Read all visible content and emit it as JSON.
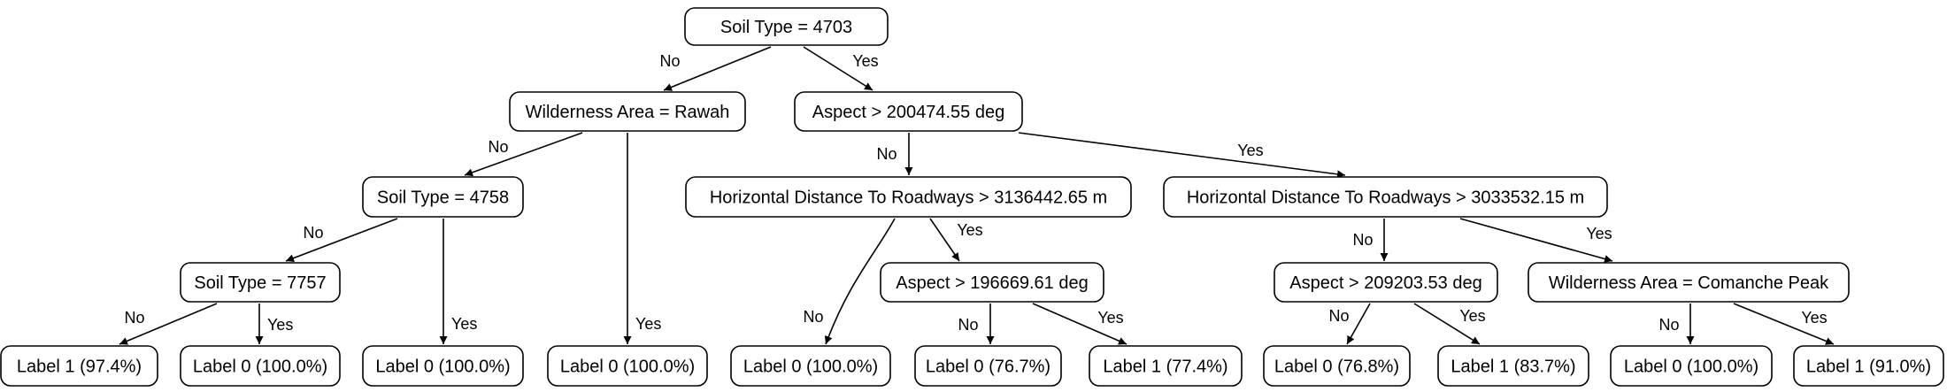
{
  "diagram": {
    "nodes": [
      {
        "id": "n0",
        "text": "Soil Type = 4703"
      },
      {
        "id": "n1",
        "text": "Wilderness Area = Rawah"
      },
      {
        "id": "n2",
        "text": "Aspect > 200474.55 deg"
      },
      {
        "id": "n3",
        "text": "Soil Type = 4758"
      },
      {
        "id": "n4",
        "text": "Horizontal Distance To Roadways > 3136442.65 m"
      },
      {
        "id": "n5",
        "text": "Horizontal Distance To Roadways > 3033532.15 m"
      },
      {
        "id": "n6",
        "text": "Soil Type = 7757"
      },
      {
        "id": "n7",
        "text": "Aspect > 196669.61 deg"
      },
      {
        "id": "n8",
        "text": "Aspect > 209203.53 deg"
      },
      {
        "id": "n9",
        "text": "Wilderness Area = Comanche Peak"
      },
      {
        "id": "l0",
        "text": "Label 1 (97.4%)"
      },
      {
        "id": "l1",
        "text": "Label 0 (100.0%)"
      },
      {
        "id": "l2",
        "text": "Label 0 (100.0%)"
      },
      {
        "id": "l3",
        "text": "Label 0 (100.0%)"
      },
      {
        "id": "l4",
        "text": "Label 0 (100.0%)"
      },
      {
        "id": "l5",
        "text": "Label 0 (76.7%)"
      },
      {
        "id": "l6",
        "text": "Label 1 (77.4%)"
      },
      {
        "id": "l7",
        "text": "Label 0 (76.8%)"
      },
      {
        "id": "l8",
        "text": "Label 1 (83.7%)"
      },
      {
        "id": "l9",
        "text": "Label 0 (100.0%)"
      },
      {
        "id": "l10",
        "text": "Label 1 (91.0%)"
      }
    ],
    "edges": [
      {
        "from": "n0",
        "to": "n1",
        "label": "No"
      },
      {
        "from": "n0",
        "to": "n2",
        "label": "Yes"
      },
      {
        "from": "n1",
        "to": "n3",
        "label": "No"
      },
      {
        "from": "n1",
        "to": "l3",
        "label": "Yes"
      },
      {
        "from": "n3",
        "to": "n6",
        "label": "No"
      },
      {
        "from": "n3",
        "to": "l2",
        "label": "Yes"
      },
      {
        "from": "n6",
        "to": "l0",
        "label": "No"
      },
      {
        "from": "n6",
        "to": "l1",
        "label": "Yes"
      },
      {
        "from": "n2",
        "to": "n4",
        "label": "No"
      },
      {
        "from": "n2",
        "to": "n5",
        "label": "Yes"
      },
      {
        "from": "n4",
        "to": "l4",
        "label": "No"
      },
      {
        "from": "n4",
        "to": "n7",
        "label": "Yes"
      },
      {
        "from": "n7",
        "to": "l5",
        "label": "No"
      },
      {
        "from": "n7",
        "to": "l6",
        "label": "Yes"
      },
      {
        "from": "n5",
        "to": "n8",
        "label": "No"
      },
      {
        "from": "n5",
        "to": "n9",
        "label": "Yes"
      },
      {
        "from": "n8",
        "to": "l7",
        "label": "No"
      },
      {
        "from": "n8",
        "to": "l8",
        "label": "Yes"
      },
      {
        "from": "n9",
        "to": "l9",
        "label": "No"
      },
      {
        "from": "n9",
        "to": "l10",
        "label": "Yes"
      }
    ]
  }
}
